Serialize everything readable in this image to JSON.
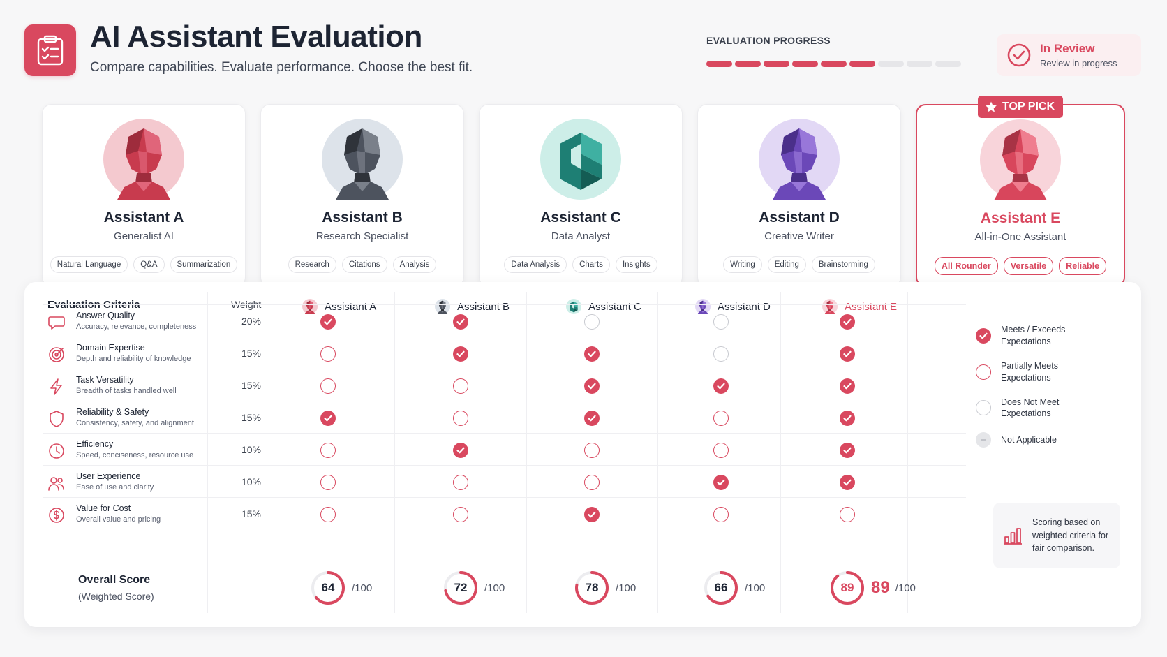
{
  "header": {
    "title": "AI Assistant Evaluation",
    "subtitle": "Compare capabilities. Evaluate performance. Choose the best fit.",
    "progress_label": "EVALUATION PROGRESS",
    "progress": {
      "completed_segments": 6,
      "total_segments": 9
    },
    "status_title": "In Review",
    "status_subtitle": "Review in progress"
  },
  "colors": {
    "accent": "#d9485f",
    "assistant_b": "#5b6270",
    "assistant_c": "#1f8a7e",
    "assistant_d": "#7a56c8"
  },
  "assistants": [
    {
      "name": "Assistant A",
      "role": "Generalist AI",
      "tags": [
        "Natural Language",
        "Q&A",
        "Summarization"
      ],
      "score": 64
    },
    {
      "name": "Assistant B",
      "role": "Research Specialist",
      "tags": [
        "Research",
        "Citations",
        "Analysis"
      ],
      "score": 72
    },
    {
      "name": "Assistant C",
      "role": "Data Analyst",
      "tags": [
        "Data Analysis",
        "Charts",
        "Insights"
      ],
      "score": 78
    },
    {
      "name": "Assistant D",
      "role": "Creative Writer",
      "tags": [
        "Writing",
        "Editing",
        "Brainstorming"
      ],
      "score": 66
    },
    {
      "name": "Assistant E",
      "role": "All-in-One Assistant",
      "tags": [
        "All Rounder",
        "Versatile",
        "Reliable"
      ],
      "score": 89,
      "badge": "TOP PICK"
    }
  ],
  "table": {
    "criteria_header": "Evaluation Criteria",
    "weight_header": "Weight",
    "rows": [
      {
        "name": "Answer Quality",
        "desc": "Accuracy, relevance, completeness",
        "weight": "20%",
        "icon": "chat-bubble-icon",
        "marks": [
          "full",
          "full",
          "none",
          "none",
          "full"
        ]
      },
      {
        "name": "Domain Expertise",
        "desc": "Depth and reliability of knowledge",
        "weight": "15%",
        "icon": "target-icon",
        "marks": [
          "empty",
          "full",
          "full",
          "none",
          "full"
        ]
      },
      {
        "name": "Task Versatility",
        "desc": "Breadth of tasks handled well",
        "weight": "15%",
        "icon": "lightning-icon",
        "marks": [
          "empty",
          "empty",
          "full",
          "full",
          "full"
        ]
      },
      {
        "name": "Reliability & Safety",
        "desc": "Consistency, safety, and alignment",
        "weight": "15%",
        "icon": "shield-icon",
        "marks": [
          "full",
          "empty",
          "full",
          "empty",
          "full"
        ]
      },
      {
        "name": "Efficiency",
        "desc": "Speed, conciseness, resource use",
        "weight": "10%",
        "icon": "clock-icon",
        "marks": [
          "empty",
          "full",
          "empty",
          "empty",
          "full"
        ]
      },
      {
        "name": "User Experience",
        "desc": "Ease of use and clarity",
        "weight": "10%",
        "icon": "users-icon",
        "marks": [
          "empty",
          "empty",
          "empty",
          "full",
          "full"
        ]
      },
      {
        "name": "Value for Cost",
        "desc": "Overall value and pricing",
        "weight": "15%",
        "icon": "dollar-icon",
        "marks": [
          "empty",
          "empty",
          "full",
          "empty",
          "empty"
        ]
      }
    ],
    "overall_label": "Overall Score",
    "overall_sub": "(Weighted Score)",
    "score_max": "/100"
  },
  "legend": [
    {
      "type": "full",
      "label": "Meets / Exceeds Expectations"
    },
    {
      "type": "empty",
      "label": "Partially Meets Expectations"
    },
    {
      "type": "none",
      "label": "Does Not Meet Expectations"
    },
    {
      "type": "na",
      "label": "Not Applicable"
    }
  ],
  "note": "Scoring based on weighted criteria for fair comparison."
}
